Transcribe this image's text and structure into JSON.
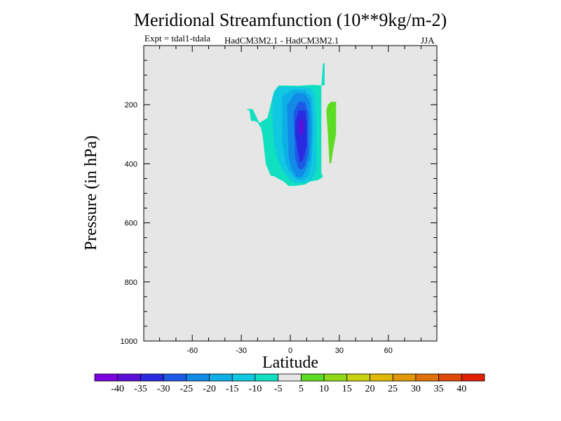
{
  "chart_data": {
    "type": "heatmap",
    "title": "Meridional Streamfunction (10**9kg/m-2)",
    "subtitle_left": "Expt = tdal1-tdala",
    "subtitle_center": "HadCM3M2.1 - HadCM3M2.1",
    "subtitle_right": "JJA",
    "xlabel": "Latitude",
    "ylabel": "Pressure (in hPa)",
    "xlim": [
      -90,
      90
    ],
    "ylim": [
      1000,
      0
    ],
    "x_ticks": [
      -60,
      -30,
      0,
      30,
      60
    ],
    "y_ticks": [
      200,
      400,
      600,
      800,
      1000
    ],
    "background_color": "#e6e6e6",
    "colorbar": {
      "labels": [
        "-40",
        "-35",
        "-30",
        "-25",
        "-20",
        "-15",
        "-10",
        "-5",
        "5",
        "10",
        "15",
        "20",
        "25",
        "30",
        "35",
        "40"
      ],
      "colors": [
        "#7a00e0",
        "#5a10d8",
        "#2a2ae0",
        "#1c5ae6",
        "#128ae8",
        "#0eaee6",
        "#10c8e0",
        "#10e0c0",
        "#e6e6e6",
        "#5cdc22",
        "#90d818",
        "#c8d010",
        "#e0b808",
        "#e09808",
        "#e07008",
        "#e04808",
        "#e02000"
      ]
    },
    "regions": [
      {
        "name": "negative -5..-10 (outer)",
        "level": -7.5,
        "color": "#10e0c0",
        "points": [
          [
            -27,
            215
          ],
          [
            -23,
            215
          ],
          [
            -19,
            262
          ],
          [
            -14,
            245
          ],
          [
            -10,
            155
          ],
          [
            -7,
            135
          ],
          [
            5,
            136
          ],
          [
            14,
            133
          ],
          [
            19,
            135
          ],
          [
            19,
            430
          ],
          [
            20,
            445
          ],
          [
            17,
            455
          ],
          [
            12,
            460
          ],
          [
            9,
            470
          ],
          [
            3,
            475
          ],
          [
            -1,
            475
          ],
          [
            -4,
            460
          ],
          [
            -7,
            452
          ],
          [
            -10,
            442
          ],
          [
            -12,
            440
          ],
          [
            -15,
            402
          ],
          [
            -17,
            302
          ],
          [
            -18,
            279
          ],
          [
            -20,
            260
          ],
          [
            -22,
            255
          ],
          [
            -24,
            255
          ],
          [
            -25,
            220
          ],
          [
            -27,
            215
          ]
        ]
      },
      {
        "name": "negative upper strip",
        "level": -7.5,
        "color": "#10e0c0",
        "points": [
          [
            19,
            135
          ],
          [
            20,
            60
          ],
          [
            21,
            60
          ],
          [
            21,
            135
          ]
        ]
      },
      {
        "name": "negative -10..-15",
        "level": -12.5,
        "color": "#10c8e0",
        "points": [
          [
            -11,
            175
          ],
          [
            -8,
            140
          ],
          [
            2,
            140
          ],
          [
            12,
            142
          ],
          [
            15,
            160
          ],
          [
            16,
            260
          ],
          [
            16,
            420
          ],
          [
            13,
            455
          ],
          [
            9,
            465
          ],
          [
            3,
            465
          ],
          [
            0,
            455
          ],
          [
            -2,
            440
          ],
          [
            -5,
            420
          ],
          [
            -8,
            380
          ],
          [
            -10,
            330
          ],
          [
            -11,
            240
          ],
          [
            -11,
            175
          ]
        ]
      },
      {
        "name": "negative -15..-20",
        "level": -17.5,
        "color": "#0eaee6",
        "points": [
          [
            -5,
            170
          ],
          [
            2,
            148
          ],
          [
            9,
            150
          ],
          [
            13,
            175
          ],
          [
            14,
            260
          ],
          [
            13,
            400
          ],
          [
            11,
            440
          ],
          [
            8,
            455
          ],
          [
            4,
            455
          ],
          [
            0,
            430
          ],
          [
            -3,
            400
          ],
          [
            -5,
            320
          ],
          [
            -5,
            170
          ]
        ]
      },
      {
        "name": "negative -20..-25",
        "level": -22.5,
        "color": "#128ae8",
        "points": [
          [
            -2,
            200
          ],
          [
            3,
            160
          ],
          [
            9,
            162
          ],
          [
            12,
            190
          ],
          [
            13,
            290
          ],
          [
            12,
            380
          ],
          [
            9,
            430
          ],
          [
            7,
            445
          ],
          [
            4,
            445
          ],
          [
            1,
            420
          ],
          [
            -1,
            380
          ],
          [
            -2,
            200
          ]
        ]
      },
      {
        "name": "negative -25..-30",
        "level": -27.5,
        "color": "#1c5ae6",
        "points": [
          [
            2,
            225
          ],
          [
            5,
            190
          ],
          [
            9,
            192
          ],
          [
            11,
            230
          ],
          [
            11,
            360
          ],
          [
            9,
            408
          ],
          [
            7,
            420
          ],
          [
            5,
            415
          ],
          [
            3,
            380
          ],
          [
            2,
            225
          ]
        ]
      },
      {
        "name": "negative -30..-35",
        "level": -32.5,
        "color": "#2a2ae0",
        "points": [
          [
            3,
            260
          ],
          [
            5,
            220
          ],
          [
            9,
            220
          ],
          [
            10,
            260
          ],
          [
            10,
            340
          ],
          [
            8,
            385
          ],
          [
            6,
            395
          ],
          [
            5,
            370
          ],
          [
            3,
            300
          ],
          [
            3,
            260
          ]
        ]
      },
      {
        "name": "negative -35..-40",
        "level": -37.5,
        "color": "#5a10d8",
        "points": [
          [
            5,
            275
          ],
          [
            6,
            250
          ],
          [
            8,
            252
          ],
          [
            8,
            290
          ],
          [
            7,
            305
          ],
          [
            6,
            300
          ],
          [
            5,
            275
          ]
        ]
      },
      {
        "name": "positive 5..10",
        "level": 7.5,
        "color": "#5cdc22",
        "points": [
          [
            23,
            200
          ],
          [
            25,
            190
          ],
          [
            28,
            190
          ],
          [
            28,
            300
          ],
          [
            26,
            360
          ],
          [
            25,
            398
          ],
          [
            24,
            398
          ],
          [
            23,
            300
          ],
          [
            22,
            220
          ],
          [
            23,
            200
          ]
        ]
      }
    ]
  }
}
